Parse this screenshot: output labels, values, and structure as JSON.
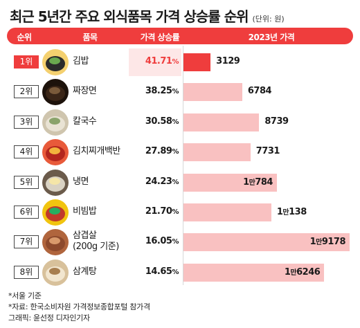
{
  "title": "최근 5년간 주요 외식품목 가격 상승률 순위",
  "unit": "(단위: 원)",
  "header": {
    "rank": "순위",
    "item": "품목",
    "rate": "가격 상승률",
    "price": "2023년 가격"
  },
  "colors": {
    "accent": "#ef3d3d",
    "bar_light": "#f9c1c1",
    "highlight": "#fde7e7"
  },
  "chart_data": {
    "type": "bar",
    "categories": [
      "김밥",
      "짜장면",
      "칼국수",
      "김치찌개백반",
      "냉면",
      "비빔밥",
      "삼겹살(200g 기준)",
      "삼계탕"
    ],
    "values": [
      3129,
      6784,
      8739,
      7731,
      10784,
      10138,
      19178,
      16246
    ],
    "xlim": [
      0,
      19178
    ]
  },
  "rows": [
    {
      "rank": "1위",
      "name": "김밥",
      "icon": "gimbap-photo-icon",
      "rate": "41.71",
      "pct": "%",
      "price": 3129,
      "price_parts": [
        "",
        "",
        "3129"
      ]
    },
    {
      "rank": "2위",
      "name": "짜장면",
      "icon": "jjajangmyeon-photo-icon",
      "rate": "38.25",
      "pct": "%",
      "price": 6784,
      "price_parts": [
        "",
        "",
        "6784"
      ]
    },
    {
      "rank": "3위",
      "name": "칼국수",
      "icon": "kalguksu-photo-icon",
      "rate": "30.58",
      "pct": "%",
      "price": 8739,
      "price_parts": [
        "",
        "",
        "8739"
      ]
    },
    {
      "rank": "4위",
      "name": "김치찌개백반",
      "icon": "kimchi-jjigae-photo-icon",
      "rate": "27.89",
      "pct": "%",
      "price": 7731,
      "price_parts": [
        "",
        "",
        "7731"
      ]
    },
    {
      "rank": "5위",
      "name": "냉면",
      "icon": "naengmyeon-photo-icon",
      "rate": "24.23",
      "pct": "%",
      "price": 10784,
      "price_parts": [
        "1",
        "만",
        "784"
      ]
    },
    {
      "rank": "6위",
      "name": "비빔밥",
      "icon": "bibimbap-photo-icon",
      "rate": "21.70",
      "pct": "%",
      "price": 10138,
      "price_parts": [
        "1",
        "만",
        "138"
      ]
    },
    {
      "rank": "7위",
      "name": "삼겹살",
      "name2": "(200g 기준)",
      "icon": "samgyeopsal-photo-icon",
      "rate": "16.05",
      "pct": "%",
      "price": 19178,
      "price_parts": [
        "1",
        "만",
        "9178"
      ]
    },
    {
      "rank": "8위",
      "name": "삼계탕",
      "icon": "samgyetang-photo-icon",
      "rate": "14.65",
      "pct": "%",
      "price": 16246,
      "price_parts": [
        "1",
        "만",
        "6246"
      ]
    }
  ],
  "notes": [
    "*서울 기준",
    "*자료: 한국소비자원 가격정보종합포털 참가격",
    "그래픽: 윤선정 디자인기자"
  ]
}
